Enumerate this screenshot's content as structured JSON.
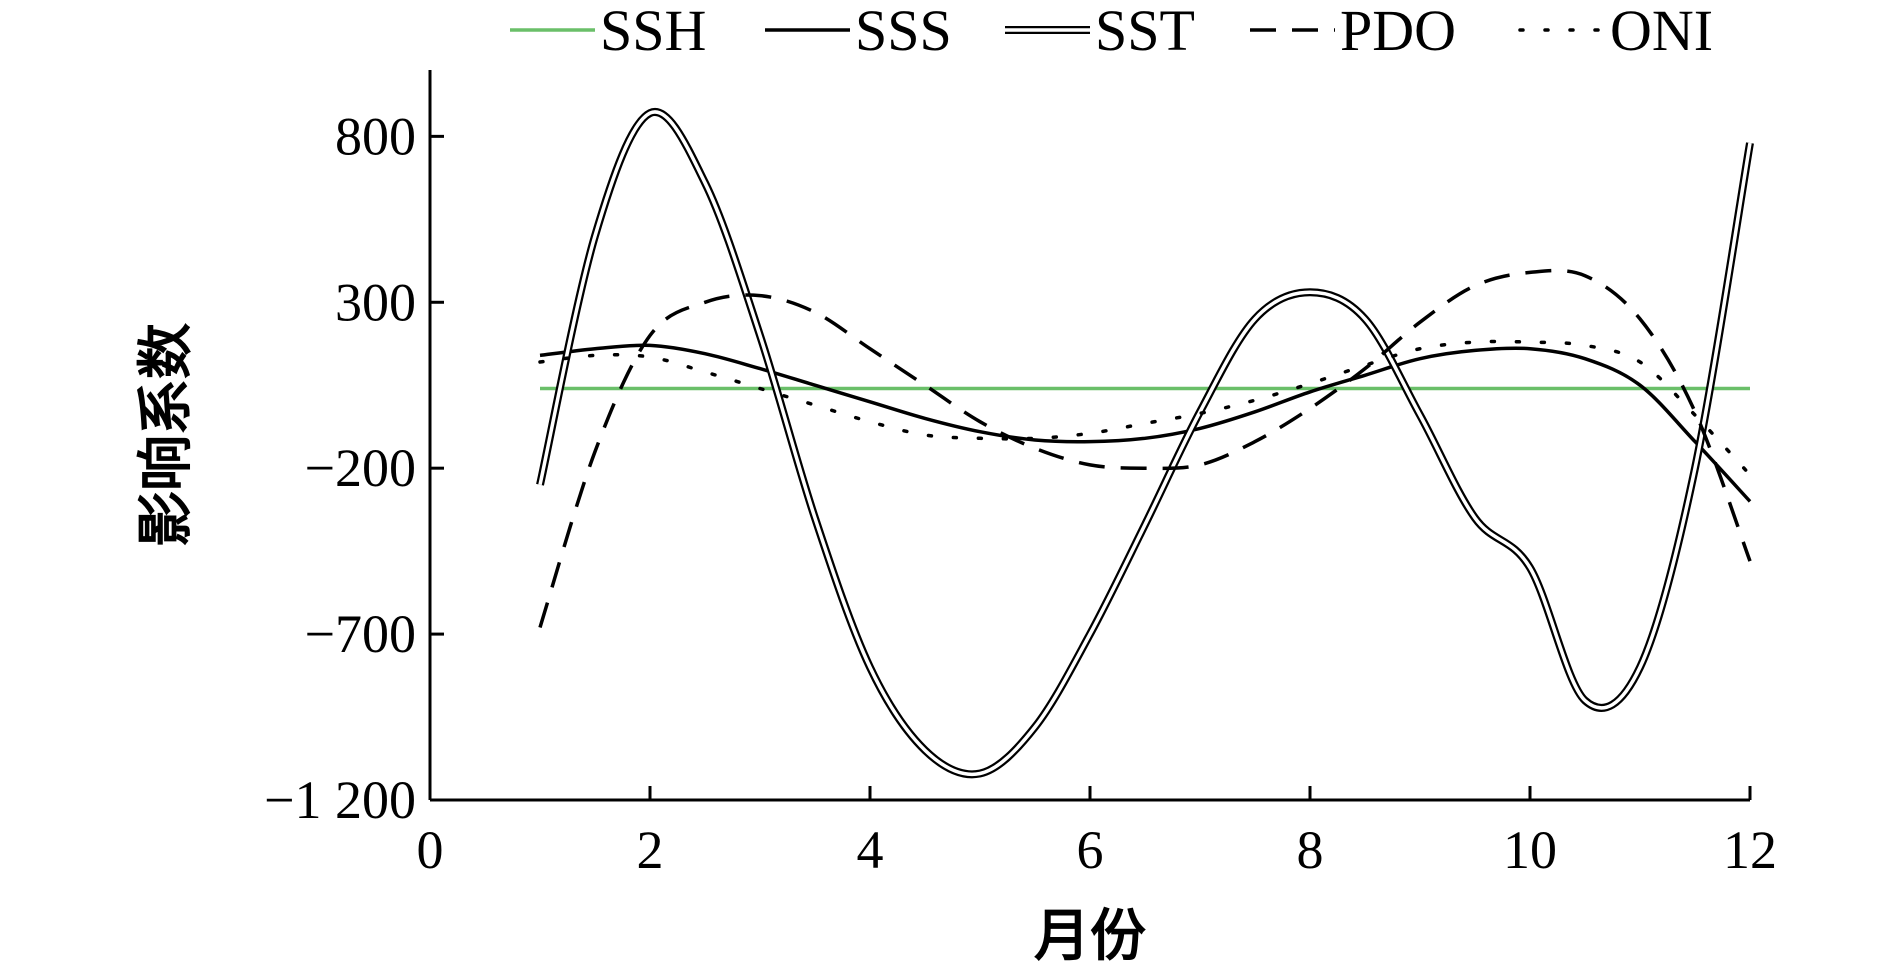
{
  "chart_data": {
    "type": "line",
    "title": "",
    "xlabel": "月份",
    "ylabel": "影响系数",
    "xlim": [
      0,
      12
    ],
    "ylim": [
      -1200,
      1000
    ],
    "x_ticks": [
      0,
      2,
      4,
      6,
      8,
      10,
      12
    ],
    "y_ticks": [
      -1200,
      -700,
      -200,
      300,
      800
    ],
    "x_tick_labels": [
      "0",
      "2",
      "4",
      "6",
      "8",
      "10",
      "12"
    ],
    "y_tick_labels": [
      "−1 200",
      "−700",
      "−200",
      "300",
      "800"
    ],
    "legend_position": "top",
    "grid": false,
    "series": [
      {
        "name": "SSH",
        "style": "solid",
        "color": "#6abf69",
        "x": [
          1,
          12
        ],
        "y": [
          40,
          40
        ]
      },
      {
        "name": "SSS",
        "style": "solid",
        "color": "#000000",
        "x": [
          1,
          1.5,
          2,
          2.5,
          3,
          3.5,
          4,
          4.5,
          5,
          5.5,
          6,
          6.5,
          7,
          7.5,
          8,
          8.5,
          9,
          9.5,
          10,
          10.5,
          11,
          11.5,
          12
        ],
        "y": [
          140,
          160,
          170,
          145,
          100,
          50,
          0,
          -50,
          -90,
          -115,
          -120,
          -110,
          -80,
          -30,
          30,
          80,
          130,
          155,
          160,
          130,
          50,
          -120,
          -300
        ]
      },
      {
        "name": "SST",
        "style": "double",
        "color": "#000000",
        "x": [
          1,
          1.5,
          2,
          2.5,
          3,
          3.5,
          4,
          4.5,
          5,
          5.5,
          6,
          6.5,
          7,
          7.5,
          8,
          8.5,
          9,
          9.5,
          10,
          10.5,
          11,
          11.5,
          12
        ],
        "y": [
          -250,
          500,
          870,
          660,
          200,
          -350,
          -800,
          -1050,
          -1120,
          -980,
          -700,
          -370,
          -30,
          250,
          330,
          250,
          -40,
          -350,
          -500,
          -900,
          -800,
          -200,
          780
        ]
      },
      {
        "name": "PDO",
        "style": "dashed",
        "color": "#000000",
        "x": [
          1,
          1.5,
          2,
          2.5,
          3,
          3.5,
          4,
          4.5,
          5,
          5.5,
          6,
          6.5,
          7,
          7.5,
          8,
          8.5,
          9,
          9.5,
          10,
          10.5,
          11,
          11.5,
          12
        ],
        "y": [
          -680,
          -150,
          200,
          300,
          320,
          270,
          160,
          50,
          -60,
          -140,
          -190,
          -200,
          -190,
          -120,
          -20,
          100,
          240,
          350,
          390,
          380,
          250,
          -30,
          -480
        ]
      },
      {
        "name": "ONI",
        "style": "dotted",
        "color": "#000000",
        "x": [
          1,
          1.5,
          2,
          2.5,
          3,
          3.5,
          4,
          4.5,
          5,
          5.5,
          6,
          6.5,
          7,
          7.5,
          8,
          8.5,
          9,
          9.5,
          10,
          10.5,
          11,
          11.5,
          12
        ],
        "y": [
          120,
          140,
          135,
          90,
          40,
          -10,
          -60,
          -100,
          -110,
          -110,
          -95,
          -65,
          -35,
          5,
          55,
          110,
          160,
          180,
          180,
          170,
          120,
          -40,
          -220
        ]
      }
    ]
  }
}
